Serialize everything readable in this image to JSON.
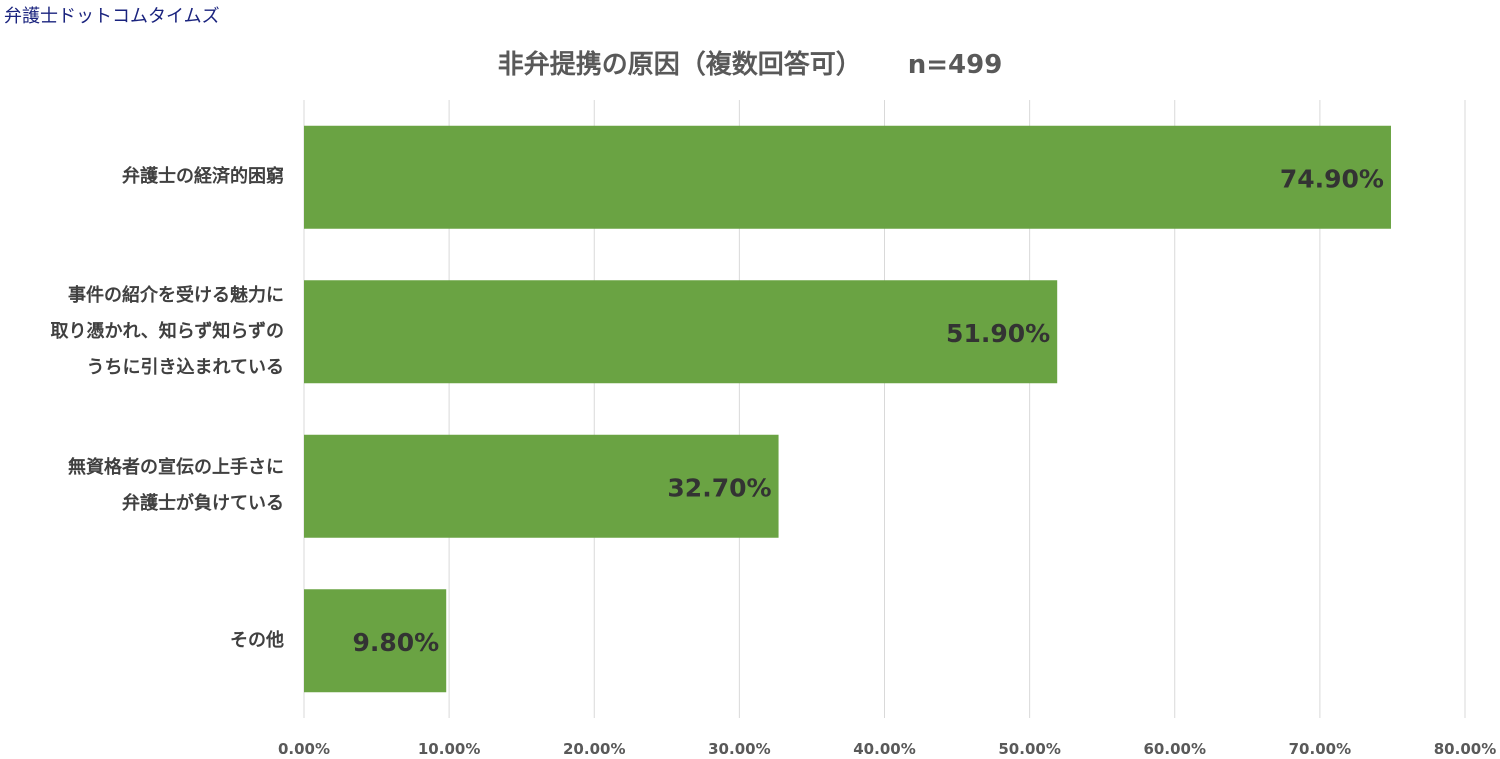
{
  "watermark": "弁護士ドットコムタイムズ",
  "chart_data": {
    "type": "bar",
    "orientation": "horizontal",
    "title": "非弁提携の原因（複数回答可）",
    "subtitle": "n=499",
    "categories": [
      [
        "弁護士の経済的困窮"
      ],
      [
        "事件の紹介を受ける魅力に",
        "取り憑かれ、知らず知らずの",
        "うちに引き込まれている"
      ],
      [
        "無資格者の宣伝の上手さに",
        "弁護士が負けている"
      ],
      [
        "その他"
      ]
    ],
    "values": [
      74.9,
      51.9,
      32.7,
      9.8
    ],
    "value_labels": [
      "74.90%",
      "51.90%",
      "32.70%",
      "9.80%"
    ],
    "xticks": [
      "0.00%",
      "10.00%",
      "20.00%",
      "30.00%",
      "40.00%",
      "50.00%",
      "60.00%",
      "70.00%",
      "80.00%"
    ],
    "xlim": [
      0,
      80
    ],
    "grid": true,
    "bar_color": "#6aa343",
    "xlabel": "",
    "ylabel": ""
  }
}
